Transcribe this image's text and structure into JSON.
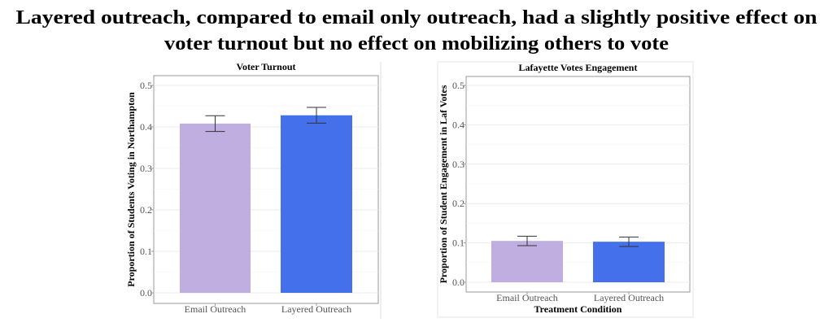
{
  "figure_title": {
    "line1": "Layered outreach, compared to email only outreach, had a slightly positive effect on",
    "line2": "voter turnout but no effect on mobilizing others to vote"
  },
  "colors": {
    "email": "#C0AEE0",
    "layered": "#4570EC",
    "error_bar": "#333333"
  },
  "chart_data": [
    {
      "type": "bar",
      "title": "Voter Turnout",
      "xlabel": "",
      "ylabel": "Proportion of Students Voting in Northampton",
      "ylim": [
        0,
        0.5
      ],
      "yticks": [
        "0.0",
        "0.1",
        "0.2",
        "0.3",
        "0.4",
        "0.5"
      ],
      "categories": [
        "Email Outreach",
        "Layered Outreach"
      ],
      "values": [
        0.408,
        0.428
      ],
      "error_low": [
        0.389,
        0.409
      ],
      "error_high": [
        0.427,
        0.447
      ],
      "grid": true
    },
    {
      "type": "bar",
      "title": "Lafayette Votes Engagement",
      "xlabel": "Treatment Condition",
      "ylabel": "Proportion of Student Engagement in Laf Votes",
      "ylim": [
        0,
        0.5
      ],
      "yticks": [
        "0.0",
        "0.1",
        "0.2",
        "0.3",
        "0.4",
        "0.5"
      ],
      "categories": [
        "Email Outreach",
        "Layered Outreach"
      ],
      "values": [
        0.105,
        0.103
      ],
      "error_low": [
        0.093,
        0.091
      ],
      "error_high": [
        0.117,
        0.115
      ],
      "grid": true
    }
  ]
}
